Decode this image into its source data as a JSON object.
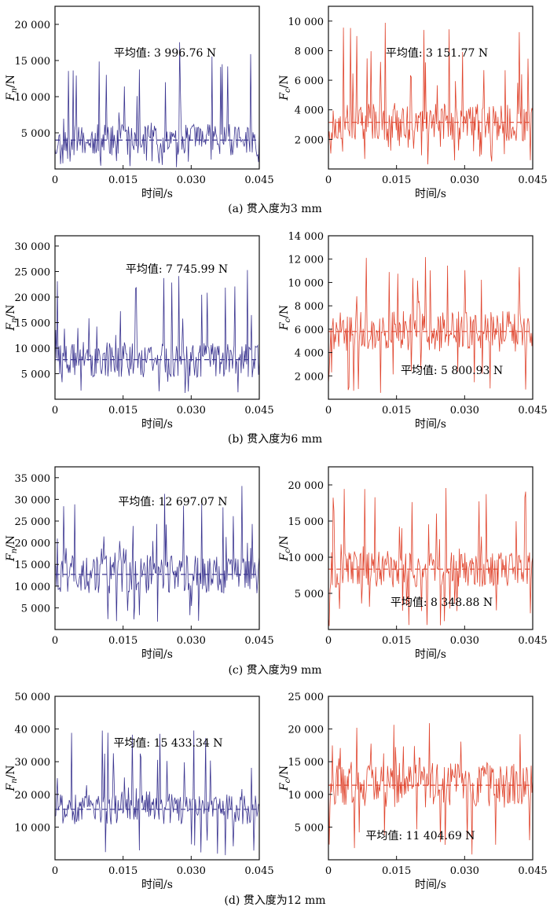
{
  "figure": {
    "captions": [
      "(a) 贯入度为3 mm",
      "(b) 贯入度为6 mm",
      "(c) 贯入度为9 mm",
      "(d) 贯入度为12 mm"
    ]
  },
  "colors": {
    "normal": "#3b3590",
    "cut": "#e0452e",
    "axis": "#111111"
  },
  "chart_data": [
    {
      "type": "line",
      "panel": "a-left",
      "ylabel_main": "F",
      "ylabel_sub": "n",
      "ylabel_tail": "/N",
      "xlabel": "时间/s",
      "x_ticks": [
        "0",
        "0.015",
        "0.030",
        "0.045"
      ],
      "xlim": [
        0,
        0.045
      ],
      "ylim": [
        0,
        22500
      ],
      "y_ticks": [
        5000,
        10000,
        15000,
        20000
      ],
      "y_tick_labels": [
        "5 000",
        "10 000",
        "15 000",
        "20 000"
      ],
      "mean": 3996.76,
      "annotation": "平均值: 3 996.76 N",
      "series_name": "Fn",
      "seed": 11,
      "spread": 0.55,
      "peak_prob": 0.09,
      "peak_max": 17800,
      "min_val": 200
    },
    {
      "type": "line",
      "panel": "a-right",
      "ylabel_main": "F",
      "ylabel_sub": "c",
      "ylabel_tail": "/N",
      "xlabel": "时间/s",
      "x_ticks": [
        "0",
        "0.015",
        "0.030",
        "0.045"
      ],
      "xlim": [
        0,
        0.045
      ],
      "ylim": [
        0,
        11000
      ],
      "y_ticks": [
        2000,
        4000,
        6000,
        8000,
        10000
      ],
      "y_tick_labels": [
        "2 000",
        "4 000",
        "6 000",
        "8 000",
        "10 000"
      ],
      "mean": 3151.77,
      "annotation": "平均值: 3 151.77 N",
      "series_name": "Fc",
      "seed": 23,
      "spread": 0.4,
      "peak_prob": 0.08,
      "peak_max": 10000,
      "min_val": 300
    },
    {
      "type": "line",
      "panel": "b-left",
      "ylabel_main": "F",
      "ylabel_sub": "n",
      "ylabel_tail": "/N",
      "xlabel": "时间/s",
      "x_ticks": [
        "0",
        "0.015",
        "0.030",
        "0.045"
      ],
      "xlim": [
        0,
        0.045
      ],
      "ylim": [
        0,
        32000
      ],
      "y_ticks": [
        5000,
        10000,
        15000,
        20000,
        25000,
        30000
      ],
      "y_tick_labels": [
        "5 000",
        "10 000",
        "15 000",
        "20 000",
        "25 000",
        "30 000"
      ],
      "mean": 7745.99,
      "annotation": "平均值: 7 745.99 N",
      "series_name": "Fn",
      "seed": 37,
      "spread": 0.45,
      "peak_prob": 0.1,
      "peak_max": 28000,
      "min_val": 800
    },
    {
      "type": "line",
      "panel": "b-right",
      "ylabel_main": "F",
      "ylabel_sub": "c",
      "ylabel_tail": "/N",
      "xlabel": "时间/s",
      "x_ticks": [
        "0",
        "0.015",
        "0.030",
        "0.045"
      ],
      "xlim": [
        0,
        0.045
      ],
      "ylim": [
        0,
        14000
      ],
      "y_ticks": [
        2000,
        4000,
        6000,
        8000,
        10000,
        12000,
        14000
      ],
      "y_tick_labels": [
        "2 000",
        "4 000",
        "6 000",
        "8 000",
        "10 000",
        "12 000",
        "14 000"
      ],
      "mean": 5800.93,
      "annotation": "平均值: 5 800.93 N",
      "series_name": "Fc",
      "seed": 41,
      "spread": 0.3,
      "peak_prob": 0.1,
      "peak_max": 12200,
      "min_val": 300
    },
    {
      "type": "line",
      "panel": "c-left",
      "ylabel_main": "F",
      "ylabel_sub": "n",
      "ylabel_tail": "/N",
      "xlabel": "时间/s",
      "x_ticks": [
        "0",
        "0.015",
        "0.030",
        "0.045"
      ],
      "xlim": [
        0,
        0.045
      ],
      "ylim": [
        0,
        37500
      ],
      "y_ticks": [
        5000,
        10000,
        15000,
        20000,
        25000,
        30000,
        35000
      ],
      "y_tick_labels": [
        "5 000",
        "10 000",
        "15 000",
        "20 000",
        "25 000",
        "30 000",
        "35 000"
      ],
      "mean": 12697.07,
      "annotation": "平均值: 12 697.07 N",
      "series_name": "Fn",
      "seed": 53,
      "spread": 0.35,
      "peak_prob": 0.1,
      "peak_max": 34000,
      "min_val": 400
    },
    {
      "type": "line",
      "panel": "c-right",
      "ylabel_main": "F",
      "ylabel_sub": "c",
      "ylabel_tail": "/N",
      "xlabel": "时间/s",
      "x_ticks": [
        "0",
        "0.015",
        "0.030",
        "0.045"
      ],
      "xlim": [
        0,
        0.045
      ],
      "ylim": [
        0,
        22500
      ],
      "y_ticks": [
        5000,
        10000,
        15000,
        20000
      ],
      "y_tick_labels": [
        "5 000",
        "10 000",
        "15 000",
        "20 000"
      ],
      "mean": 8348.88,
      "annotation": "平均值: 8 348.88 N",
      "series_name": "Fc",
      "seed": 67,
      "spread": 0.3,
      "peak_prob": 0.1,
      "peak_max": 19600,
      "min_val": 300
    },
    {
      "type": "line",
      "panel": "d-left",
      "ylabel_main": "F",
      "ylabel_sub": "n",
      "ylabel_tail": "/N",
      "xlabel": "时间/s",
      "x_ticks": [
        "0",
        "0.015",
        "0.030",
        "0.045"
      ],
      "xlim": [
        0,
        0.045
      ],
      "ylim": [
        0,
        50000
      ],
      "y_ticks": [
        10000,
        20000,
        30000,
        40000,
        50000
      ],
      "y_tick_labels": [
        "10 000",
        "20 000",
        "30 000",
        "40 000",
        "50 000"
      ],
      "mean": 15433.34,
      "annotation": "平均值: 15 433.34 N",
      "series_name": "Fn",
      "seed": 71,
      "spread": 0.3,
      "peak_prob": 0.1,
      "peak_max": 42000,
      "min_val": 400
    },
    {
      "type": "line",
      "panel": "d-right",
      "ylabel_main": "F",
      "ylabel_sub": "c",
      "ylabel_tail": "/N",
      "xlabel": "时间/s",
      "x_ticks": [
        "0",
        "0.015",
        "0.030",
        "0.045"
      ],
      "xlim": [
        0,
        0.045
      ],
      "ylim": [
        0,
        25000
      ],
      "y_ticks": [
        5000,
        10000,
        15000,
        20000,
        25000
      ],
      "y_tick_labels": [
        "5 000",
        "10 000",
        "15 000",
        "20 000",
        "25 000"
      ],
      "mean": 11404.69,
      "annotation": "平均值: 11 404.69 N",
      "series_name": "Fc",
      "seed": 89,
      "spread": 0.3,
      "peak_prob": 0.1,
      "peak_max": 21000,
      "min_val": 300
    }
  ]
}
